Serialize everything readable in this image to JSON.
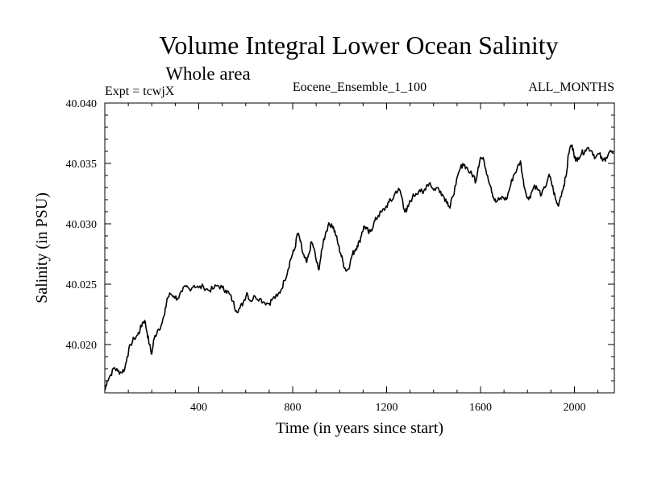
{
  "chart_data": {
    "type": "line",
    "title": "Volume Integral Lower Ocean Salinity",
    "subtitle": "Whole area",
    "annotations": {
      "left": "Expt = tcwjX",
      "center": "Eocene_Ensemble_1_100",
      "right": "ALL_MONTHS"
    },
    "xlabel": "Time (in years since start)",
    "ylabel": "Salinity (in PSU)",
    "xlim": [
      0,
      2170
    ],
    "ylim": [
      40.016,
      40.04
    ],
    "xticks": [
      400,
      800,
      1200,
      1600,
      2000
    ],
    "xtick_labels": [
      "400",
      "800",
      "1200",
      "1600",
      "2000"
    ],
    "yticks": [
      40.02,
      40.025,
      40.03,
      40.035,
      40.04
    ],
    "ytick_labels": [
      "40.020",
      "40.025",
      "40.030",
      "40.035",
      "40.040"
    ],
    "grid": false,
    "series": [
      {
        "values": [
          [
            0,
            40.0162
          ],
          [
            10,
            40.017
          ],
          [
            25,
            40.0175
          ],
          [
            40,
            40.0181
          ],
          [
            55,
            40.0178
          ],
          [
            70,
            40.0177
          ],
          [
            85,
            40.018
          ],
          [
            95,
            40.019
          ],
          [
            110,
            40.02
          ],
          [
            125,
            40.0205
          ],
          [
            140,
            40.0208
          ],
          [
            150,
            40.0212
          ],
          [
            160,
            40.0218
          ],
          [
            170,
            40.022
          ],
          [
            180,
            40.021
          ],
          [
            190,
            40.02
          ],
          [
            200,
            40.0192
          ],
          [
            210,
            40.0205
          ],
          [
            225,
            40.0212
          ],
          [
            240,
            40.0216
          ],
          [
            255,
            40.0225
          ],
          [
            265,
            40.0238
          ],
          [
            280,
            40.0242
          ],
          [
            295,
            40.024
          ],
          [
            310,
            40.0238
          ],
          [
            330,
            40.0244
          ],
          [
            345,
            40.0248
          ],
          [
            360,
            40.0246
          ],
          [
            380,
            40.0249
          ],
          [
            400,
            40.0247
          ],
          [
            420,
            40.0248
          ],
          [
            440,
            40.0245
          ],
          [
            460,
            40.0246
          ],
          [
            480,
            40.0249
          ],
          [
            500,
            40.0247
          ],
          [
            515,
            40.0245
          ],
          [
            530,
            40.0242
          ],
          [
            545,
            40.0236
          ],
          [
            560,
            40.0228
          ],
          [
            575,
            40.023
          ],
          [
            590,
            40.0235
          ],
          [
            605,
            40.0243
          ],
          [
            620,
            40.0236
          ],
          [
            640,
            40.024
          ],
          [
            660,
            40.0238
          ],
          [
            680,
            40.0235
          ],
          [
            700,
            40.0234
          ],
          [
            715,
            40.0238
          ],
          [
            735,
            40.024
          ],
          [
            750,
            40.0245
          ],
          [
            765,
            40.0253
          ],
          [
            780,
            40.0262
          ],
          [
            790,
            40.027
          ],
          [
            800,
            40.0275
          ],
          [
            810,
            40.028
          ],
          [
            820,
            40.0292
          ],
          [
            830,
            40.0288
          ],
          [
            840,
            40.0278
          ],
          [
            850,
            40.0272
          ],
          [
            860,
            40.0268
          ],
          [
            870,
            40.0275
          ],
          [
            880,
            40.0285
          ],
          [
            890,
            40.028
          ],
          [
            900,
            40.027
          ],
          [
            910,
            40.0262
          ],
          [
            920,
            40.0272
          ],
          [
            930,
            40.0285
          ],
          [
            940,
            40.0292
          ],
          [
            950,
            40.0298
          ],
          [
            965,
            40.03
          ],
          [
            975,
            40.0296
          ],
          [
            985,
            40.029
          ],
          [
            995,
            40.0282
          ],
          [
            1005,
            40.0275
          ],
          [
            1015,
            40.0268
          ],
          [
            1025,
            40.0262
          ],
          [
            1035,
            40.0262
          ],
          [
            1045,
            40.0268
          ],
          [
            1055,
            40.0275
          ],
          [
            1065,
            40.0278
          ],
          [
            1075,
            40.0282
          ],
          [
            1085,
            40.0285
          ],
          [
            1095,
            40.0293
          ],
          [
            1105,
            40.0298
          ],
          [
            1115,
            40.0296
          ],
          [
            1125,
            40.0292
          ],
          [
            1135,
            40.0295
          ],
          [
            1145,
            40.03
          ],
          [
            1155,
            40.0304
          ],
          [
            1165,
            40.0307
          ],
          [
            1180,
            40.031
          ],
          [
            1195,
            40.0313
          ],
          [
            1210,
            40.0318
          ],
          [
            1225,
            40.032
          ],
          [
            1240,
            40.0327
          ],
          [
            1255,
            40.0328
          ],
          [
            1265,
            40.0322
          ],
          [
            1275,
            40.0312
          ],
          [
            1285,
            40.031
          ],
          [
            1295,
            40.0316
          ],
          [
            1310,
            40.0322
          ],
          [
            1325,
            40.0325
          ],
          [
            1340,
            40.0328
          ],
          [
            1355,
            40.0325
          ],
          [
            1370,
            40.0332
          ],
          [
            1385,
            40.0334
          ],
          [
            1400,
            40.0328
          ],
          [
            1415,
            40.033
          ],
          [
            1430,
            40.0327
          ],
          [
            1445,
            40.0322
          ],
          [
            1460,
            40.0318
          ],
          [
            1470,
            40.0313
          ],
          [
            1480,
            40.0322
          ],
          [
            1495,
            40.0332
          ],
          [
            1510,
            40.0344
          ],
          [
            1525,
            40.035
          ],
          [
            1540,
            40.0347
          ],
          [
            1555,
            40.0342
          ],
          [
            1570,
            40.034
          ],
          [
            1580,
            40.0335
          ],
          [
            1590,
            40.0347
          ],
          [
            1600,
            40.0355
          ],
          [
            1615,
            40.0352
          ],
          [
            1630,
            40.034
          ],
          [
            1645,
            40.033
          ],
          [
            1655,
            40.0322
          ],
          [
            1665,
            40.0318
          ],
          [
            1680,
            40.032
          ],
          [
            1695,
            40.0322
          ],
          [
            1710,
            40.032
          ],
          [
            1725,
            40.033
          ],
          [
            1740,
            40.034
          ],
          [
            1755,
            40.0345
          ],
          [
            1770,
            40.0352
          ],
          [
            1780,
            40.0338
          ],
          [
            1790,
            40.0328
          ],
          [
            1805,
            40.032
          ],
          [
            1815,
            40.0325
          ],
          [
            1830,
            40.0332
          ],
          [
            1845,
            40.0328
          ],
          [
            1860,
            40.0324
          ],
          [
            1875,
            40.033
          ],
          [
            1890,
            40.034
          ],
          [
            1900,
            40.0336
          ],
          [
            1910,
            40.0328
          ],
          [
            1920,
            40.032
          ],
          [
            1930,
            40.0315
          ],
          [
            1940,
            40.0322
          ],
          [
            1955,
            40.0332
          ],
          [
            1965,
            40.034
          ],
          [
            1975,
            40.0358
          ],
          [
            1985,
            40.0365
          ],
          [
            1995,
            40.0362
          ],
          [
            2005,
            40.0352
          ],
          [
            2015,
            40.0355
          ],
          [
            2030,
            40.0358
          ],
          [
            2045,
            40.0361
          ],
          [
            2060,
            40.0363
          ],
          [
            2075,
            40.036
          ],
          [
            2090,
            40.0355
          ],
          [
            2105,
            40.0358
          ],
          [
            2120,
            40.0352
          ],
          [
            2135,
            40.0355
          ],
          [
            2150,
            40.036
          ],
          [
            2165,
            40.0358
          ]
        ]
      }
    ]
  }
}
